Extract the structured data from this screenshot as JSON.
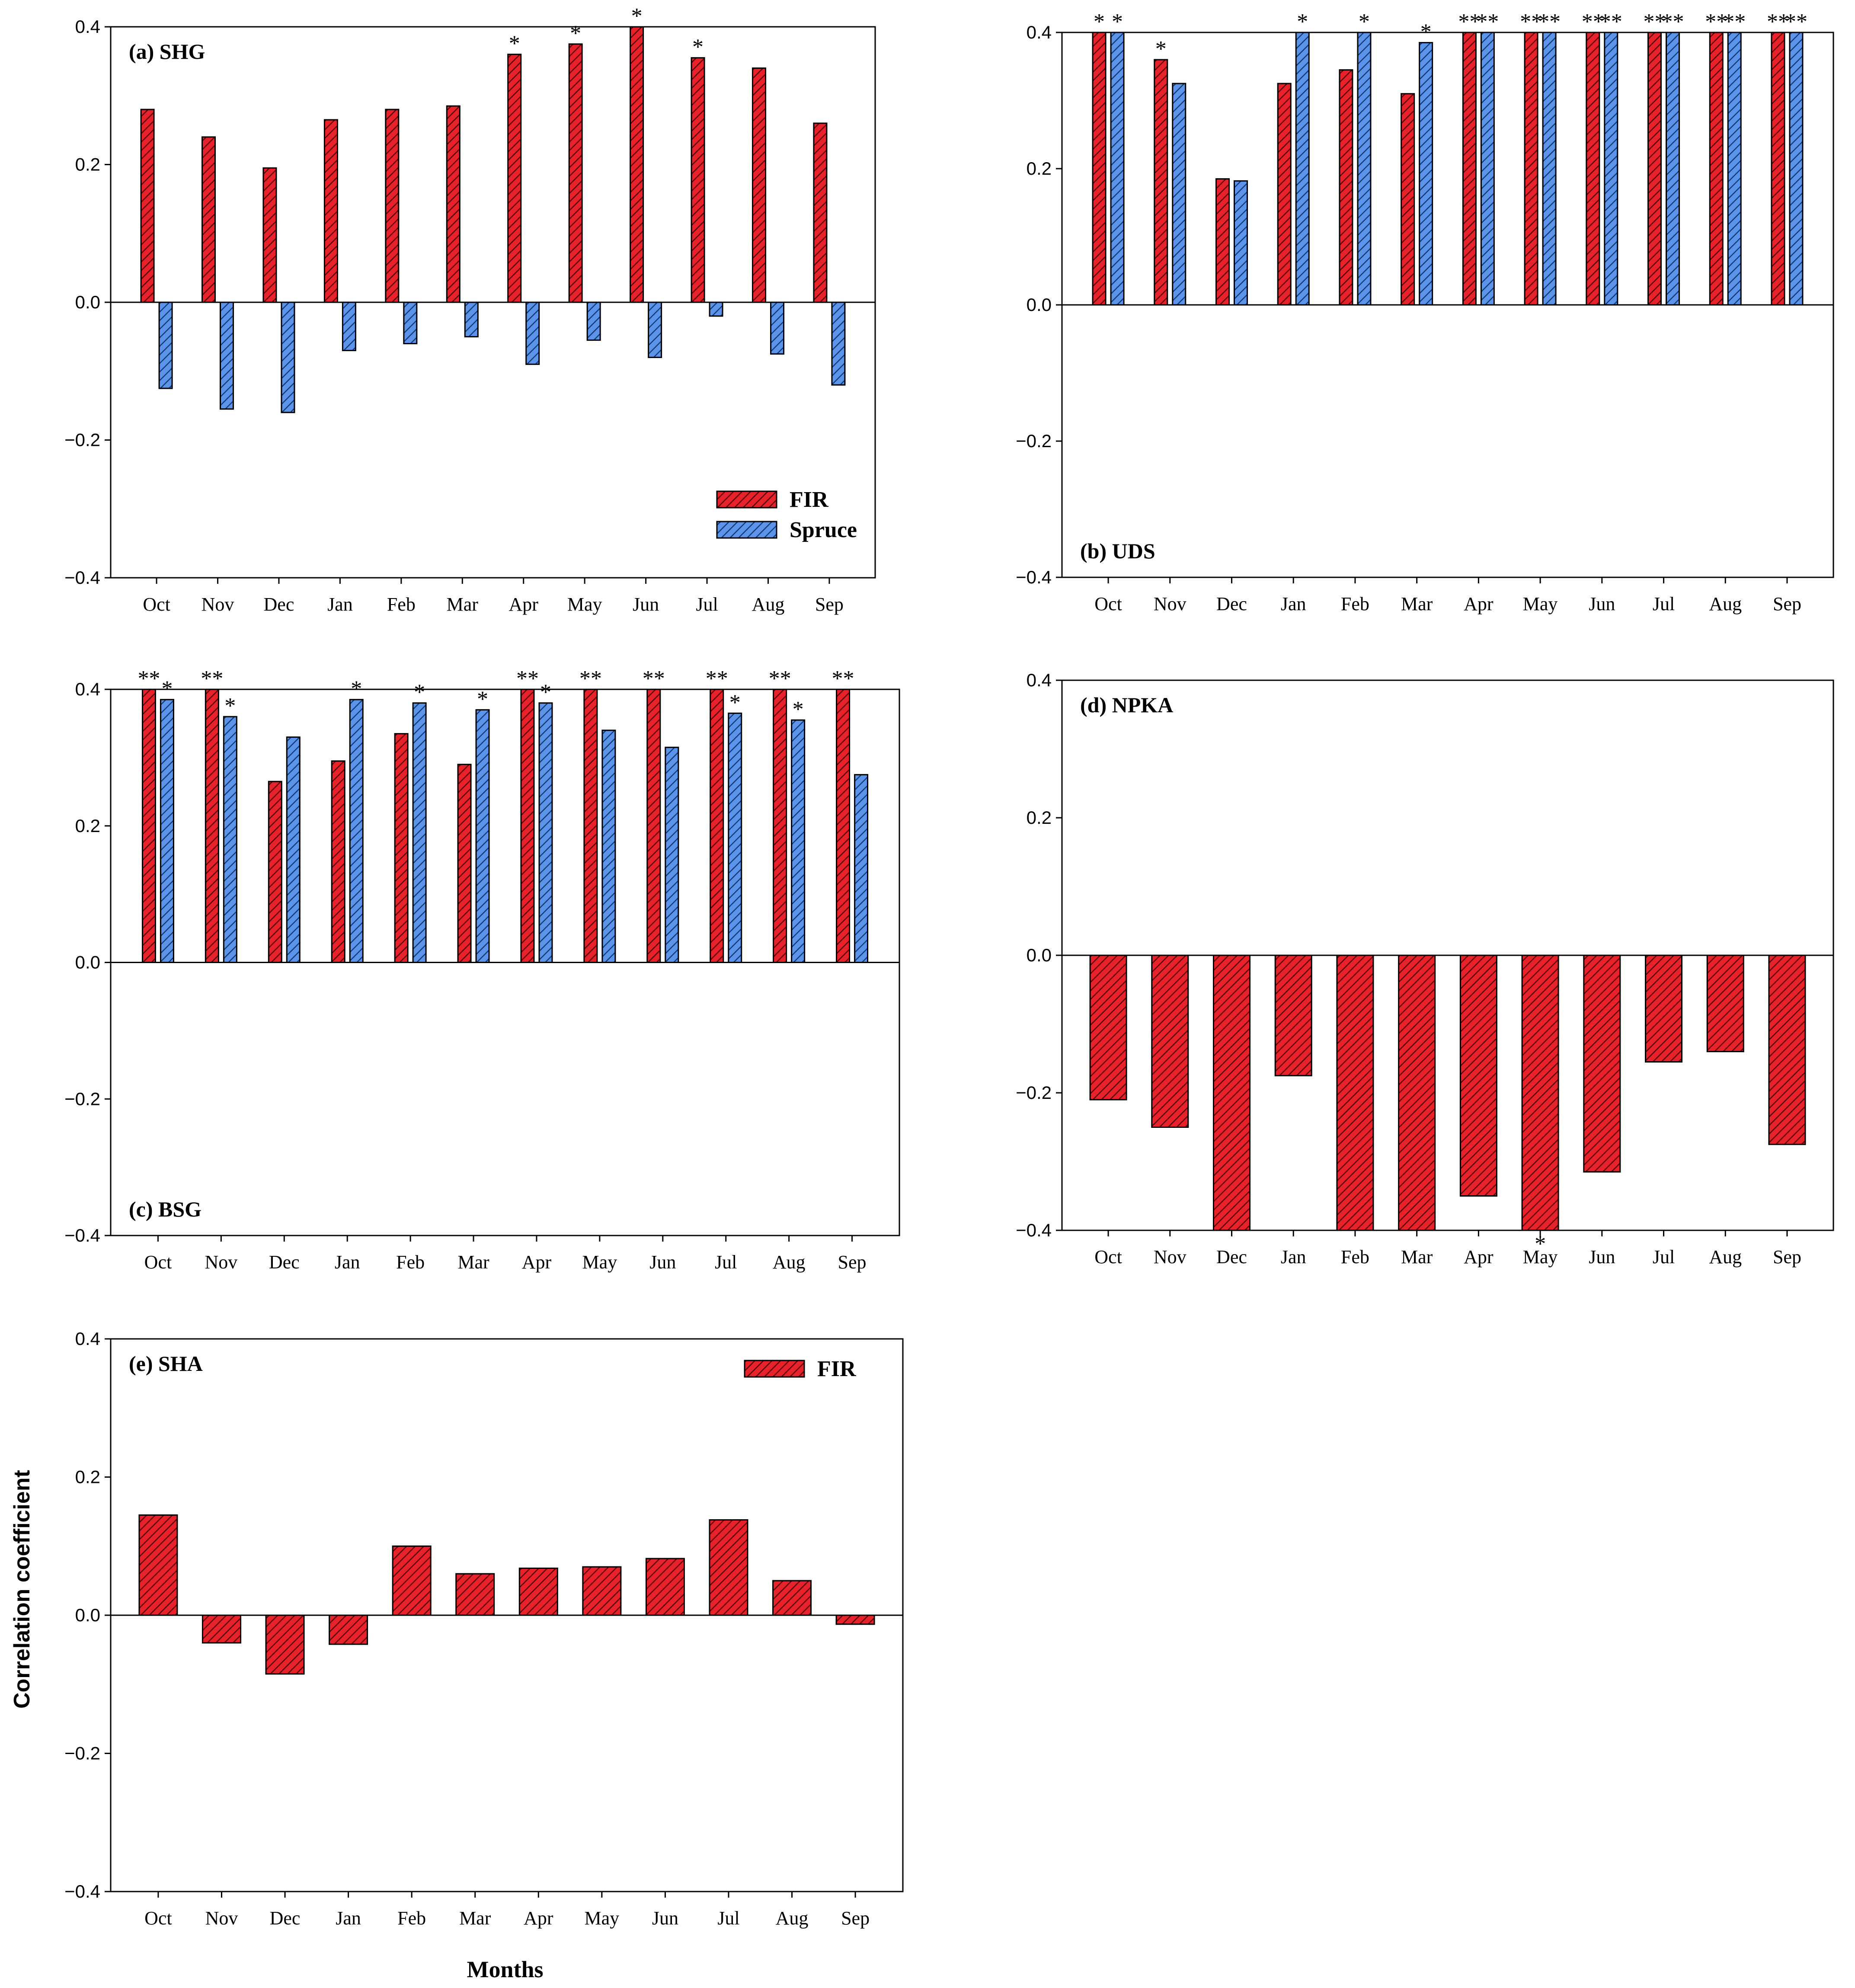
{
  "colors": {
    "fir": "#e8222b",
    "fir_hatch": "#5a0005",
    "spruce": "#5b94e8",
    "spruce_hatch": "#143a78",
    "axis": "#000000"
  },
  "axis_labels": {
    "y": "Correlation coefficient",
    "x": "Months"
  },
  "chart_data": [
    {
      "id": "a",
      "type": "bar",
      "title": "(a) SHG",
      "categories": [
        "Oct",
        "Nov",
        "Dec",
        "Jan",
        "Feb",
        "Mar",
        "Apr",
        "May",
        "Jun",
        "Jul",
        "Aug",
        "Sep"
      ],
      "ylim": [
        -0.4,
        0.4
      ],
      "yticks": [
        "0.4",
        "0.2",
        "0.0",
        "−0.2",
        "−0.4"
      ],
      "legend": [
        "FIR",
        "Spruce"
      ],
      "series": [
        {
          "name": "FIR",
          "values": [
            0.28,
            0.24,
            0.195,
            0.265,
            0.28,
            0.285,
            0.36,
            0.375,
            0.4,
            0.355,
            0.34,
            0.26
          ],
          "marks": [
            "",
            "",
            "",
            "",
            "",
            "",
            "*",
            "*",
            "*",
            "*",
            "",
            ""
          ]
        },
        {
          "name": "Spruce",
          "values": [
            -0.125,
            -0.155,
            -0.16,
            -0.07,
            -0.06,
            -0.05,
            -0.09,
            -0.055,
            -0.08,
            -0.02,
            -0.075,
            -0.12
          ],
          "marks": [
            "",
            "",
            "",
            "",
            "",
            "",
            "",
            "",
            "",
            "",
            "",
            ""
          ]
        }
      ]
    },
    {
      "id": "b",
      "type": "bar",
      "title": "(b) UDS",
      "categories": [
        "Oct",
        "Nov",
        "Dec",
        "Jan",
        "Feb",
        "Mar",
        "Apr",
        "May",
        "Jun",
        "Jul",
        "Aug",
        "Sep"
      ],
      "ylim": [
        -0.4,
        0.4
      ],
      "yticks": [
        "0.4",
        "0.2",
        "0.0",
        "−0.2",
        "−0.4"
      ],
      "legend": [],
      "series": [
        {
          "name": "FIR",
          "values": [
            0.4,
            0.36,
            0.185,
            0.325,
            0.345,
            0.31,
            0.4,
            0.4,
            0.4,
            0.4,
            0.4,
            0.4
          ],
          "marks": [
            "*",
            "*",
            "",
            "",
            "",
            "",
            "**",
            "**",
            "**",
            "**",
            "**",
            "**"
          ]
        },
        {
          "name": "Spruce",
          "values": [
            0.4,
            0.325,
            0.182,
            0.4,
            0.4,
            0.385,
            0.4,
            0.4,
            0.4,
            0.4,
            0.4,
            0.4
          ],
          "marks": [
            "*",
            "",
            "",
            "*",
            "*",
            "*",
            "**",
            "**",
            "**",
            "**",
            "**",
            "**"
          ]
        }
      ]
    },
    {
      "id": "c",
      "type": "bar",
      "title": "(c) BSG",
      "categories": [
        "Oct",
        "Nov",
        "Dec",
        "Jan",
        "Feb",
        "Mar",
        "Apr",
        "May",
        "Jun",
        "Jul",
        "Aug",
        "Sep"
      ],
      "ylim": [
        -0.4,
        0.4
      ],
      "yticks": [
        "0.4",
        "0.2",
        "0.0",
        "−0.2",
        "−0.4"
      ],
      "legend": [],
      "series": [
        {
          "name": "FIR",
          "values": [
            0.4,
            0.4,
            0.265,
            0.295,
            0.335,
            0.29,
            0.4,
            0.4,
            0.4,
            0.4,
            0.4,
            0.4
          ],
          "marks": [
            "**",
            "**",
            "",
            "",
            "",
            "",
            "**",
            "**",
            "**",
            "**",
            "**",
            "**"
          ]
        },
        {
          "name": "Spruce",
          "values": [
            0.385,
            0.36,
            0.33,
            0.385,
            0.38,
            0.37,
            0.38,
            0.34,
            0.315,
            0.365,
            0.355,
            0.275
          ],
          "marks": [
            "*",
            "*",
            "",
            "*",
            "*",
            "*",
            "*",
            "",
            "",
            "*",
            "*",
            ""
          ]
        }
      ]
    },
    {
      "id": "d",
      "type": "bar",
      "title": "(d) NPKA",
      "categories": [
        "Oct",
        "Nov",
        "Dec",
        "Jan",
        "Feb",
        "Mar",
        "Apr",
        "May",
        "Jun",
        "Jul",
        "Aug",
        "Sep"
      ],
      "ylim": [
        -0.4,
        0.4
      ],
      "yticks": [
        "0.4",
        "0.2",
        "0.0",
        "−0.2",
        "−0.4"
      ],
      "legend": [],
      "series": [
        {
          "name": "FIR",
          "values": [
            -0.21,
            -0.25,
            -0.4,
            -0.175,
            -0.4,
            -0.4,
            -0.35,
            -0.4,
            -0.315,
            -0.155,
            -0.14,
            -0.275
          ],
          "marks": [
            "",
            "",
            "",
            "",
            "",
            "",
            "",
            "*",
            "",
            "",
            "",
            ""
          ]
        }
      ]
    },
    {
      "id": "e",
      "type": "bar",
      "title": "(e) SHA",
      "categories": [
        "Oct",
        "Nov",
        "Dec",
        "Jan",
        "Feb",
        "Mar",
        "Apr",
        "May",
        "Jun",
        "Jul",
        "Aug",
        "Sep"
      ],
      "ylim": [
        -0.4,
        0.4
      ],
      "yticks": [
        "0.4",
        "0.2",
        "0.0",
        "−0.2",
        "−0.4"
      ],
      "legend": [
        "FIR"
      ],
      "series": [
        {
          "name": "FIR",
          "values": [
            0.145,
            -0.04,
            -0.085,
            -0.042,
            0.1,
            0.06,
            0.068,
            0.07,
            0.082,
            0.138,
            0.05,
            -0.013
          ],
          "marks": [
            "",
            "",
            "",
            "",
            "",
            "",
            "",
            "",
            "",
            "",
            "",
            ""
          ]
        }
      ]
    }
  ]
}
